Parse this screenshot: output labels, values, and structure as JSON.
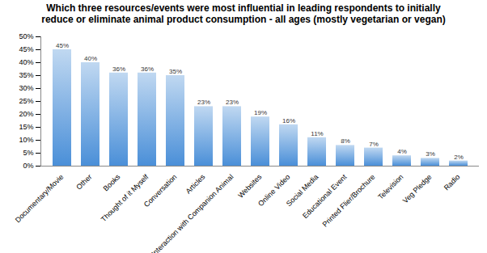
{
  "chart_data": {
    "type": "bar",
    "title": "Which three resources/events were most influential in leading respondents to initially reduce or eliminate animal product consumption - all ages (mostly vegetarian or vegan)",
    "categories": [
      "Documentary/Movie",
      "Other",
      "Books",
      "Thought of it Myself",
      "Conversation",
      "Articles",
      "Interaction with Companion Animal",
      "Websites",
      "Online Video",
      "Social Media",
      "Educational Event",
      "Printed Flier/Brochure",
      "Television",
      "Veg Pledge",
      "Radio"
    ],
    "values": [
      45,
      40,
      36,
      36,
      35,
      23,
      23,
      19,
      16,
      11,
      8,
      7,
      4,
      3,
      2
    ],
    "value_labels": [
      "45%",
      "40%",
      "36%",
      "36%",
      "35%",
      "23%",
      "23%",
      "19%",
      "16%",
      "11%",
      "8%",
      "7%",
      "4%",
      "3%",
      "2%"
    ],
    "data_labels": true,
    "color": "#4a8fd8",
    "ylim": [
      0,
      50
    ],
    "yticks": [
      {
        "value": 0,
        "label": "0%"
      },
      {
        "value": 5,
        "label": "5%"
      },
      {
        "value": 10,
        "label": "10%"
      },
      {
        "value": 15,
        "label": "15%"
      },
      {
        "value": 20,
        "label": "20%"
      },
      {
        "value": 25,
        "label": "25%"
      },
      {
        "value": 30,
        "label": "30%"
      },
      {
        "value": 35,
        "label": "35%"
      },
      {
        "value": 40,
        "label": "40%"
      },
      {
        "value": 45,
        "label": "45%"
      },
      {
        "value": 50,
        "label": "50%"
      }
    ],
    "grid": false
  }
}
